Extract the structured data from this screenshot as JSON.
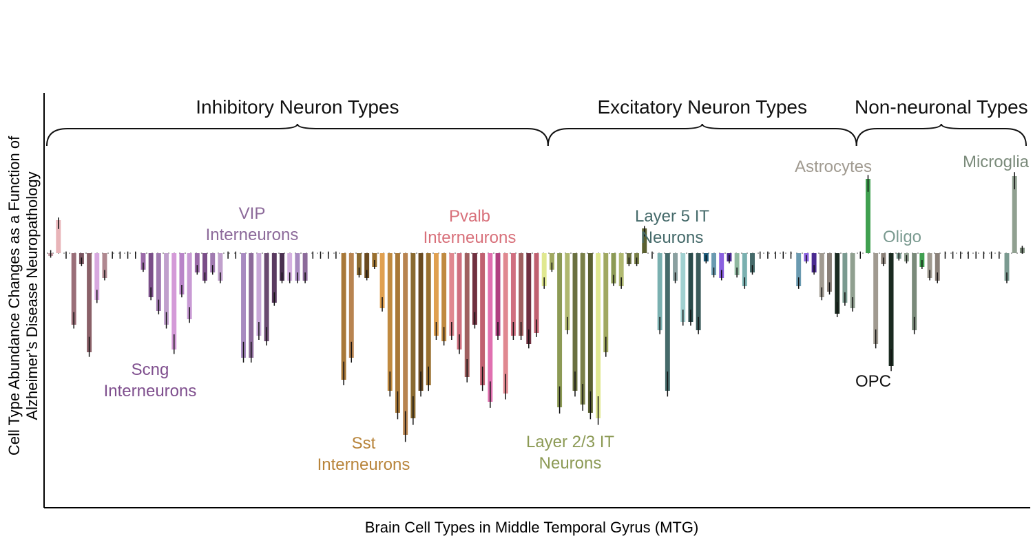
{
  "chart_data": {
    "type": "bar",
    "xlabel": "Brain Cell Types in Middle Temporal Gyrus (MTG)",
    "ylabel_lines": [
      "Cell Type Abundance Changes as a Function of",
      "Alzheimer’s Disease Neuropathology"
    ],
    "ylim": [
      -1.0,
      1.0
    ],
    "grid": false,
    "groups": [
      {
        "label": "Inhibitory Neuron Types",
        "start": 0,
        "end": 65
      },
      {
        "label": "Excitatory Neuron Types",
        "start": 65,
        "end": 105
      },
      {
        "label": "Non-neuronal Types",
        "start": 105,
        "end": 127
      }
    ],
    "annotations": [
      {
        "text_lines": [
          "Scng",
          "Interneurons"
        ],
        "color": "#7f4f8e"
      },
      {
        "text_lines": [
          "VIP",
          "Interneurons"
        ],
        "color": "#8c6a9a"
      },
      {
        "text_lines": [
          "Sst",
          "Interneurons"
        ],
        "color": "#b8843a"
      },
      {
        "text_lines": [
          "Pvalb",
          "Interneurons"
        ],
        "color": "#d8707a"
      },
      {
        "text_lines": [
          "Layer 2/3 IT",
          "Neurons"
        ],
        "color": "#8c9a55"
      },
      {
        "text_lines": [
          "Layer 5 IT",
          "Neurons"
        ],
        "color": "#456a6a"
      },
      {
        "text_lines": [
          "Astrocytes"
        ],
        "color": "#a09a90"
      },
      {
        "text_lines": [
          "OPC"
        ],
        "color": "#111111"
      },
      {
        "text_lines": [
          "Oligo"
        ],
        "color": "#7a9a90"
      },
      {
        "text_lines": [
          "Microglia"
        ],
        "color": "#7a8a7a"
      }
    ],
    "series": [
      {
        "values": [
          -0.01,
          0.12,
          0.0,
          -0.26,
          -0.04,
          -0.36,
          -0.17,
          -0.09,
          0.0,
          0.0,
          0.0,
          0.0,
          -0.06,
          -0.16,
          -0.21,
          -0.26,
          -0.35,
          -0.15,
          -0.24,
          -0.07,
          -0.1,
          -0.07,
          -0.1,
          0.0,
          0.0,
          -0.38,
          -0.38,
          -0.3,
          -0.32,
          -0.18,
          -0.1,
          -0.1,
          -0.1,
          -0.1,
          0.0,
          0.0,
          0.0,
          0.0,
          -0.46,
          -0.38,
          -0.08,
          -0.09,
          -0.05,
          -0.2,
          -0.5,
          -0.58,
          -0.66,
          -0.6,
          -0.5,
          -0.48,
          -0.3,
          -0.32,
          -0.3,
          -0.35,
          -0.45,
          -0.26,
          -0.48,
          -0.54,
          -0.3,
          -0.51,
          -0.3,
          -0.3,
          -0.33,
          -0.29,
          -0.12,
          -0.06,
          -0.56,
          -0.28,
          -0.5,
          -0.55,
          -0.58,
          -0.6,
          -0.36,
          -0.11,
          -0.12,
          -0.04,
          -0.04,
          0.09,
          0.0,
          -0.28,
          -0.5,
          -0.1,
          -0.25,
          -0.25,
          -0.28,
          -0.03,
          -0.08,
          -0.09,
          -0.03,
          -0.08,
          -0.12,
          -0.07,
          0.0,
          0.0,
          0.0,
          0.0,
          0.0,
          -0.12,
          -0.03,
          -0.07,
          -0.16,
          -0.14,
          -0.22,
          -0.18,
          -0.2,
          0.0,
          0.27,
          -0.33,
          -0.04,
          -0.41,
          -0.02,
          -0.03,
          -0.28,
          -0.05,
          -0.09,
          -0.1,
          0.0,
          0.0,
          0.0,
          0.0,
          0.0,
          0.0,
          0.0,
          0.0,
          -0.1,
          0.28,
          0.02
        ]
      }
    ]
  }
}
